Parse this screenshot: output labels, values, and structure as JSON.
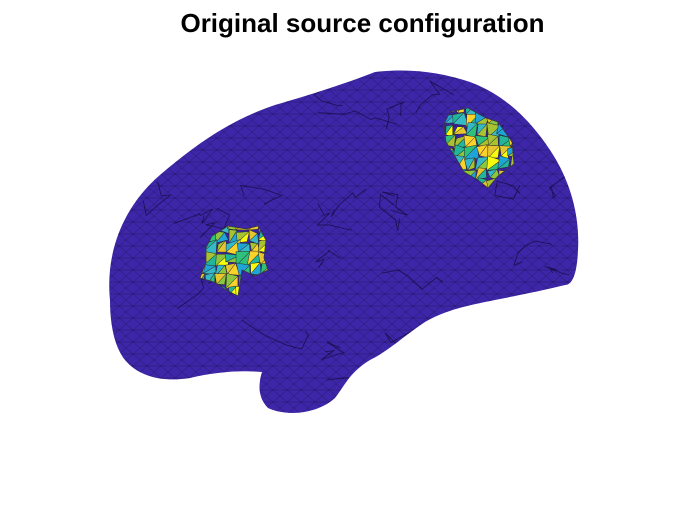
{
  "figure": {
    "title": "Original source configuration"
  },
  "colors": {
    "background": "#ffffff",
    "cortex": "#3d26a8",
    "mesh_edge": "#0a0626",
    "source_palette": [
      "#f9fb0e",
      "#fbd22a",
      "#e6c52f",
      "#a8c232",
      "#2fc07c",
      "#23b59a",
      "#36b9c6",
      "#1fa4d8",
      "#8cc63f"
    ]
  }
}
